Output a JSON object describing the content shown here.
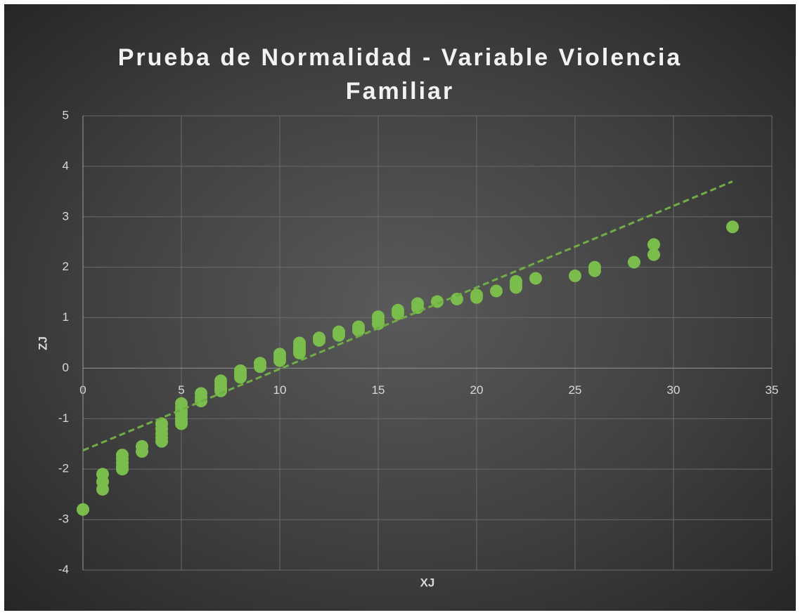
{
  "chart_data": {
    "type": "scatter",
    "title": "Prueba de Normalidad - Variable Violencia Familiar",
    "xlabel": "XJ",
    "ylabel": "ZJ",
    "color": "#7abd4c",
    "x": [
      0,
      1,
      1,
      1,
      2,
      2,
      2,
      2,
      2,
      3,
      3,
      4,
      4,
      4,
      4,
      4,
      5,
      5,
      5,
      5,
      5,
      5,
      5,
      6,
      6,
      6,
      7,
      7,
      7,
      7,
      8,
      8,
      8,
      9,
      9,
      10,
      10,
      10,
      11,
      11,
      11,
      11,
      12,
      12,
      13,
      13,
      14,
      14,
      15,
      15,
      15,
      16,
      16,
      17,
      17,
      18,
      19,
      20,
      20,
      21,
      22,
      22,
      22,
      23,
      25,
      26,
      26,
      28,
      29,
      29,
      33
    ],
    "values": [
      -2.8,
      -2.1,
      -2.25,
      -2.4,
      -1.72,
      -1.8,
      -1.88,
      -1.95,
      -2.0,
      -1.55,
      -1.65,
      -1.1,
      -1.2,
      -1.3,
      -1.38,
      -1.45,
      -0.7,
      -0.78,
      -0.85,
      -0.92,
      -1.0,
      -1.05,
      -1.1,
      -0.5,
      -0.58,
      -0.65,
      -0.25,
      -0.32,
      -0.4,
      -0.45,
      -0.05,
      -0.12,
      -0.18,
      0.1,
      0.03,
      0.28,
      0.2,
      0.15,
      0.5,
      0.42,
      0.35,
      0.3,
      0.6,
      0.55,
      0.72,
      0.65,
      0.82,
      0.75,
      1.02,
      0.95,
      0.88,
      1.15,
      1.08,
      1.28,
      1.2,
      1.32,
      1.37,
      1.45,
      1.4,
      1.53,
      1.72,
      1.65,
      1.6,
      1.78,
      1.83,
      2.0,
      1.93,
      2.1,
      2.45,
      2.25,
      2.8
    ],
    "trendline": {
      "x": [
        0,
        33
      ],
      "values": [
        -1.63,
        3.7
      ],
      "color": "#70ad47",
      "dashed": true
    },
    "xlim": [
      0,
      35
    ],
    "xticks": [
      0,
      5,
      10,
      15,
      20,
      25,
      30,
      35
    ],
    "ylim": [
      -4,
      5
    ],
    "yticks": [
      -4,
      -3,
      -2,
      -1,
      0,
      1,
      2,
      3,
      4,
      5
    ],
    "grid": true
  }
}
